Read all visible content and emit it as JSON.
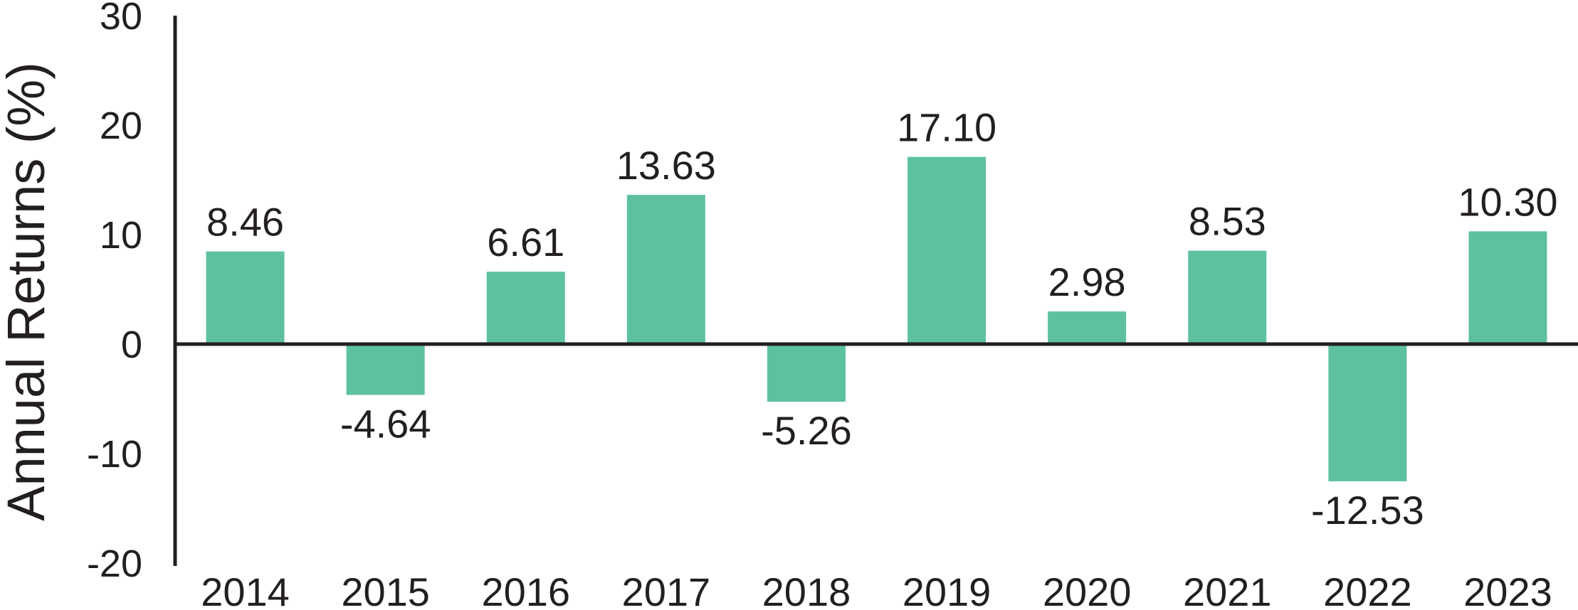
{
  "chart_data": {
    "type": "bar",
    "title": "",
    "xlabel": "",
    "ylabel": "Annual Returns (%)",
    "categories": [
      "2014",
      "2015",
      "2016",
      "2017",
      "2018",
      "2019",
      "2020",
      "2021",
      "2022",
      "2023"
    ],
    "values": [
      8.46,
      -4.64,
      6.61,
      13.63,
      -5.26,
      17.1,
      2.98,
      8.53,
      -12.53,
      10.3
    ],
    "value_labels": [
      "8.46",
      "-4.64",
      "6.61",
      "13.63",
      "-5.26",
      "17.10",
      "2.98",
      "8.53",
      "-12.53",
      "10.30"
    ],
    "ylim": [
      -20,
      30
    ],
    "yticks": [
      "30",
      "20",
      "10",
      "0",
      "-10",
      "-20"
    ],
    "ytick_values": [
      30,
      20,
      10,
      0,
      -10,
      -20
    ],
    "grid": false,
    "legend": "none",
    "bar_color": "#5dc1a0",
    "axis_color": "#231f20"
  }
}
